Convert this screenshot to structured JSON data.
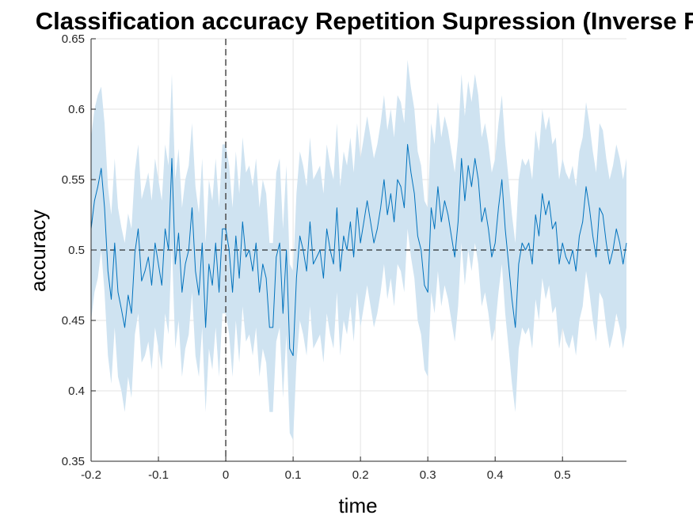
{
  "chart_data": {
    "type": "line",
    "title": "Classification accuracy Repetition Supression (Inverse Fa",
    "xlabel": "time",
    "ylabel": "accuracy",
    "xlim": [
      -0.2,
      0.595
    ],
    "ylim": [
      0.35,
      0.65
    ],
    "grid": true,
    "xticks": [
      -0.2,
      -0.1,
      0,
      0.1,
      0.2,
      0.3,
      0.4,
      0.5
    ],
    "xtick_labels": [
      "-0.2",
      "-0.1",
      "0",
      "0.1",
      "0.2",
      "0.3",
      "0.4",
      "0.5"
    ],
    "yticks": [
      0.35,
      0.4,
      0.45,
      0.5,
      0.55,
      0.6,
      0.65
    ],
    "ytick_labels": [
      "0.35",
      "0.4",
      "0.45",
      "0.5",
      "0.55",
      "0.6",
      "0.65"
    ],
    "chance_level": 0.5,
    "stimulus_onset": 0,
    "colors": {
      "line": "#0072bd",
      "band": "#cfe3f1",
      "grid": "#e3e3e3",
      "axis": "#262626",
      "reference": "#000000",
      "onset": "#555555"
    },
    "series": [
      {
        "x": [
          -0.2,
          -0.195,
          -0.19,
          -0.185,
          -0.18,
          -0.175,
          -0.17,
          -0.165,
          -0.16,
          -0.155,
          -0.15,
          -0.145,
          -0.14,
          -0.135,
          -0.13,
          -0.125,
          -0.12,
          -0.115,
          -0.11,
          -0.105,
          -0.1,
          -0.095,
          -0.09,
          -0.085,
          -0.08,
          -0.075,
          -0.07,
          -0.065,
          -0.06,
          -0.055,
          -0.05,
          -0.045,
          -0.04,
          -0.035,
          -0.03,
          -0.025,
          -0.02,
          -0.015,
          -0.01,
          -0.005,
          0,
          0.005,
          0.01,
          0.015,
          0.02,
          0.025,
          0.03,
          0.035,
          0.04,
          0.045,
          0.05,
          0.055,
          0.06,
          0.065,
          0.07,
          0.075,
          0.08,
          0.085,
          0.09,
          0.095,
          0.1,
          0.105,
          0.11,
          0.115,
          0.12,
          0.125,
          0.13,
          0.135,
          0.14,
          0.145,
          0.15,
          0.155,
          0.16,
          0.165,
          0.17,
          0.175,
          0.18,
          0.185,
          0.19,
          0.195,
          0.2,
          0.205,
          0.21,
          0.215,
          0.22,
          0.225,
          0.23,
          0.235,
          0.24,
          0.245,
          0.25,
          0.255,
          0.26,
          0.265,
          0.27,
          0.275,
          0.28,
          0.285,
          0.29,
          0.295,
          0.3,
          0.305,
          0.31,
          0.315,
          0.32,
          0.325,
          0.33,
          0.335,
          0.34,
          0.345,
          0.35,
          0.355,
          0.36,
          0.365,
          0.37,
          0.375,
          0.38,
          0.385,
          0.39,
          0.395,
          0.4,
          0.405,
          0.41,
          0.415,
          0.42,
          0.425,
          0.43,
          0.435,
          0.44,
          0.445,
          0.45,
          0.455,
          0.46,
          0.465,
          0.47,
          0.475,
          0.48,
          0.485,
          0.49,
          0.495,
          0.5,
          0.505,
          0.51,
          0.515,
          0.52,
          0.525,
          0.53,
          0.535,
          0.54,
          0.545,
          0.55,
          0.555,
          0.56,
          0.565,
          0.57,
          0.575,
          0.58,
          0.585,
          0.59,
          0.595
        ],
        "y": [
          0.515,
          0.535,
          0.545,
          0.558,
          0.53,
          0.485,
          0.465,
          0.505,
          0.47,
          0.458,
          0.445,
          0.468,
          0.455,
          0.498,
          0.515,
          0.478,
          0.485,
          0.495,
          0.475,
          0.505,
          0.49,
          0.475,
          0.515,
          0.5,
          0.565,
          0.49,
          0.512,
          0.47,
          0.49,
          0.5,
          0.53,
          0.485,
          0.468,
          0.505,
          0.445,
          0.49,
          0.475,
          0.505,
          0.47,
          0.515,
          0.515,
          0.5,
          0.47,
          0.51,
          0.48,
          0.52,
          0.495,
          0.5,
          0.485,
          0.505,
          0.47,
          0.49,
          0.48,
          0.445,
          0.445,
          0.495,
          0.505,
          0.455,
          0.5,
          0.43,
          0.425,
          0.48,
          0.51,
          0.5,
          0.485,
          0.52,
          0.49,
          0.495,
          0.5,
          0.48,
          0.515,
          0.5,
          0.49,
          0.53,
          0.485,
          0.51,
          0.5,
          0.52,
          0.495,
          0.53,
          0.505,
          0.52,
          0.535,
          0.52,
          0.505,
          0.515,
          0.53,
          0.55,
          0.525,
          0.54,
          0.52,
          0.55,
          0.545,
          0.53,
          0.575,
          0.555,
          0.54,
          0.51,
          0.5,
          0.475,
          0.47,
          0.53,
          0.515,
          0.545,
          0.52,
          0.535,
          0.525,
          0.51,
          0.495,
          0.52,
          0.565,
          0.535,
          0.56,
          0.545,
          0.565,
          0.55,
          0.52,
          0.53,
          0.515,
          0.495,
          0.505,
          0.53,
          0.55,
          0.515,
          0.49,
          0.465,
          0.445,
          0.49,
          0.505,
          0.5,
          0.505,
          0.49,
          0.525,
          0.51,
          0.54,
          0.525,
          0.535,
          0.515,
          0.52,
          0.49,
          0.505,
          0.495,
          0.49,
          0.5,
          0.485,
          0.51,
          0.52,
          0.545,
          0.53,
          0.51,
          0.495,
          0.53,
          0.525,
          0.505,
          0.49,
          0.5,
          0.515,
          0.505,
          0.49,
          0.505
        ],
        "lower": [
          0.45,
          0.47,
          0.48,
          0.5,
          0.47,
          0.425,
          0.405,
          0.445,
          0.41,
          0.4,
          0.385,
          0.41,
          0.395,
          0.44,
          0.455,
          0.42,
          0.425,
          0.435,
          0.415,
          0.445,
          0.43,
          0.415,
          0.455,
          0.44,
          0.505,
          0.43,
          0.45,
          0.41,
          0.43,
          0.44,
          0.47,
          0.425,
          0.41,
          0.445,
          0.385,
          0.43,
          0.415,
          0.445,
          0.41,
          0.455,
          0.455,
          0.44,
          0.41,
          0.45,
          0.42,
          0.46,
          0.435,
          0.44,
          0.425,
          0.445,
          0.41,
          0.43,
          0.42,
          0.385,
          0.385,
          0.435,
          0.445,
          0.395,
          0.44,
          0.37,
          0.365,
          0.42,
          0.45,
          0.44,
          0.425,
          0.46,
          0.43,
          0.435,
          0.44,
          0.42,
          0.455,
          0.44,
          0.43,
          0.47,
          0.425,
          0.45,
          0.44,
          0.46,
          0.435,
          0.47,
          0.445,
          0.46,
          0.475,
          0.46,
          0.445,
          0.455,
          0.47,
          0.49,
          0.465,
          0.48,
          0.46,
          0.49,
          0.485,
          0.47,
          0.515,
          0.495,
          0.48,
          0.45,
          0.44,
          0.415,
          0.41,
          0.47,
          0.455,
          0.485,
          0.46,
          0.475,
          0.465,
          0.45,
          0.435,
          0.46,
          0.505,
          0.475,
          0.5,
          0.485,
          0.505,
          0.49,
          0.46,
          0.47,
          0.455,
          0.435,
          0.445,
          0.47,
          0.49,
          0.455,
          0.43,
          0.405,
          0.385,
          0.43,
          0.445,
          0.44,
          0.445,
          0.43,
          0.465,
          0.45,
          0.48,
          0.465,
          0.475,
          0.455,
          0.46,
          0.43,
          0.445,
          0.435,
          0.43,
          0.44,
          0.425,
          0.45,
          0.46,
          0.485,
          0.47,
          0.45,
          0.435,
          0.47,
          0.465,
          0.445,
          0.43,
          0.44,
          0.455,
          0.445,
          0.43,
          0.445
        ],
        "upper": [
          0.58,
          0.6,
          0.61,
          0.616,
          0.59,
          0.545,
          0.525,
          0.565,
          0.53,
          0.516,
          0.505,
          0.526,
          0.515,
          0.556,
          0.575,
          0.536,
          0.545,
          0.555,
          0.535,
          0.565,
          0.55,
          0.535,
          0.575,
          0.56,
          0.625,
          0.55,
          0.572,
          0.53,
          0.55,
          0.56,
          0.59,
          0.545,
          0.526,
          0.565,
          0.505,
          0.55,
          0.535,
          0.565,
          0.53,
          0.575,
          0.575,
          0.56,
          0.53,
          0.57,
          0.54,
          0.58,
          0.555,
          0.56,
          0.545,
          0.565,
          0.53,
          0.55,
          0.54,
          0.505,
          0.505,
          0.555,
          0.565,
          0.515,
          0.56,
          0.49,
          0.485,
          0.54,
          0.57,
          0.56,
          0.545,
          0.58,
          0.55,
          0.555,
          0.56,
          0.54,
          0.575,
          0.56,
          0.55,
          0.59,
          0.545,
          0.57,
          0.56,
          0.58,
          0.555,
          0.59,
          0.565,
          0.58,
          0.595,
          0.58,
          0.565,
          0.575,
          0.59,
          0.61,
          0.585,
          0.6,
          0.58,
          0.61,
          0.605,
          0.59,
          0.635,
          0.615,
          0.6,
          0.57,
          0.56,
          0.535,
          0.53,
          0.59,
          0.575,
          0.605,
          0.58,
          0.595,
          0.585,
          0.57,
          0.555,
          0.58,
          0.625,
          0.595,
          0.62,
          0.605,
          0.625,
          0.61,
          0.58,
          0.59,
          0.575,
          0.555,
          0.565,
          0.59,
          0.61,
          0.575,
          0.55,
          0.525,
          0.505,
          0.55,
          0.565,
          0.56,
          0.565,
          0.55,
          0.585,
          0.57,
          0.6,
          0.585,
          0.595,
          0.575,
          0.58,
          0.55,
          0.565,
          0.555,
          0.55,
          0.56,
          0.545,
          0.57,
          0.58,
          0.605,
          0.59,
          0.57,
          0.555,
          0.59,
          0.585,
          0.565,
          0.55,
          0.56,
          0.575,
          0.565,
          0.55,
          0.565
        ]
      }
    ]
  }
}
